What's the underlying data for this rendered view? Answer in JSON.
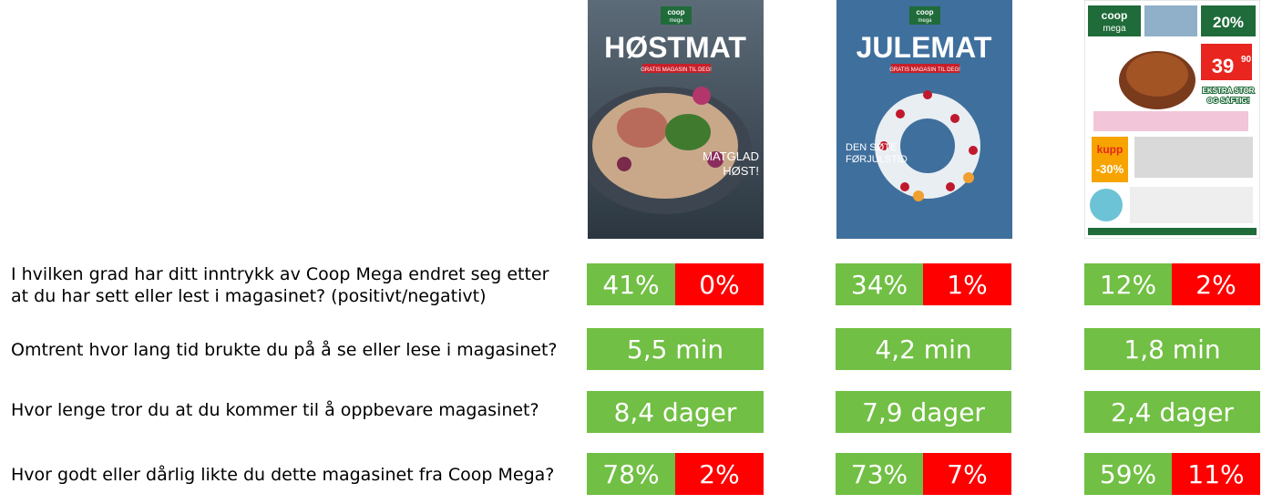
{
  "questions": [
    "I hvilken grad har ditt inntrykk av Coop Mega endret seg etter at du har sett eller lest i magasinet? (positivt/negativt)",
    "Omtrent hvor lang tid brukte du på å se eller lese i magasinet?",
    "Hvor lenge tror du at du kommer til å oppbevare magasinet?",
    "Hvor godt eller dårlig likte du dette magasinet fra Coop Mega?"
  ],
  "magazines": [
    {
      "cover": {
        "brand_top": "coop",
        "brand_bottom": "mega",
        "title": "HØSTMAT",
        "banner": "GRATIS MAGASIN TIL DEG!",
        "headline_1": "MATGLAD",
        "headline_2": "HØST!"
      },
      "impression": {
        "positive": "41%",
        "negative": "0%"
      },
      "time": "5,5 min",
      "keep": "8,4 dager",
      "liking": {
        "positive": "78%",
        "negative": "2%"
      }
    },
    {
      "cover": {
        "brand_top": "coop",
        "brand_bottom": "mega",
        "title": "JULEMAT",
        "banner": "GRATIS MAGASIN TIL DEG!",
        "headline_1": "DEN SØTE",
        "headline_2": "FØRJULSTID"
      },
      "impression": {
        "positive": "34%",
        "negative": "1%"
      },
      "time": "4,2 min",
      "keep": "7,9 dager",
      "liking": {
        "positive": "73%",
        "negative": "7%"
      }
    },
    {
      "cover": {
        "brand_top": "coop",
        "brand_bottom": "mega",
        "badge": "20%",
        "price": "39",
        "price_cents": "90",
        "tagline_1": "EKSTRA STOR",
        "tagline_2": "OG SAFTIG!",
        "kupp": "kupp",
        "discount": "-30%"
      },
      "impression": {
        "positive": "12%",
        "negative": "2%"
      },
      "time": "1,8 min",
      "keep": "2,4 dager",
      "liking": {
        "positive": "59%",
        "negative": "11%"
      }
    }
  ],
  "colors": {
    "positive": "#71bf44",
    "negative": "#ff0000"
  }
}
